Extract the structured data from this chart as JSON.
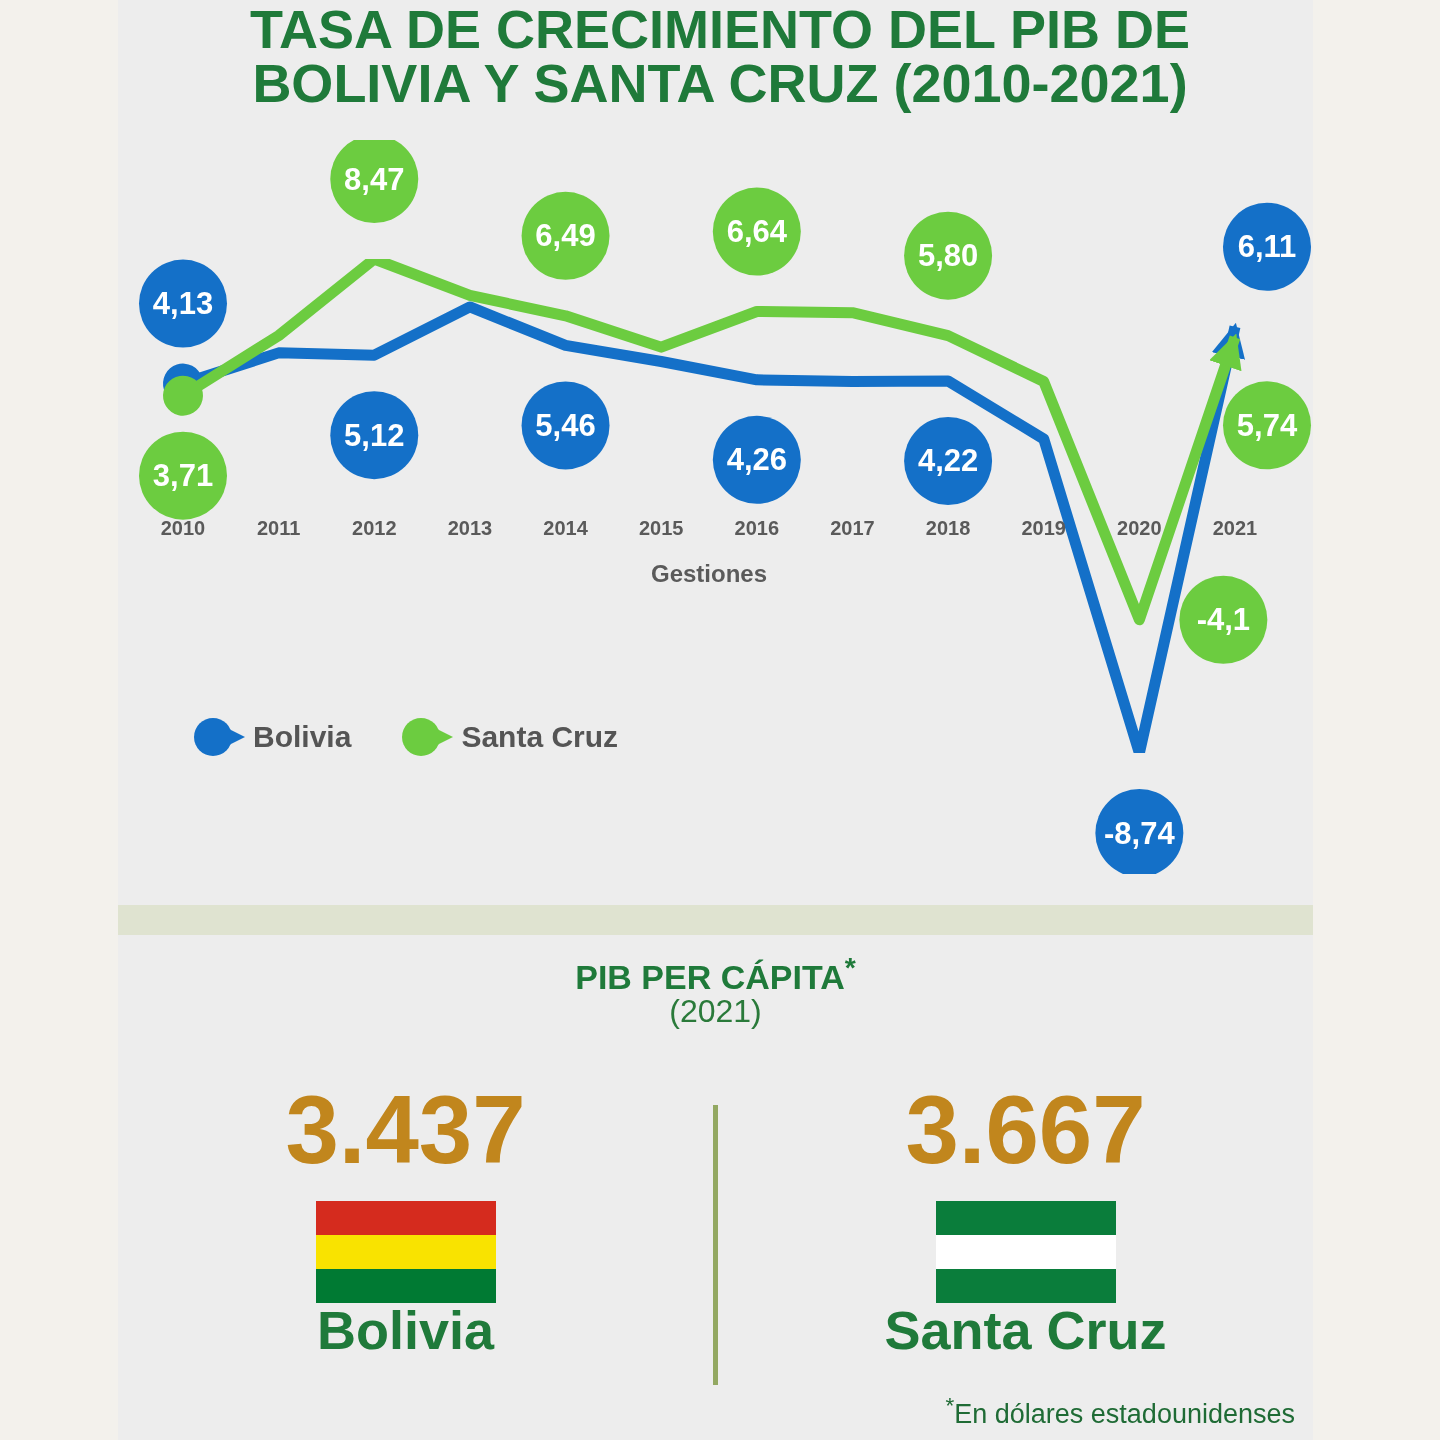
{
  "chart_data": [
    {
      "type": "line",
      "title": "TASA DE CRECIMIENTO DEL PIB DE BOLIVIA Y SANTA CRUZ (2010-2021)",
      "xlabel": "Gestiones",
      "categories": [
        "2010",
        "2011",
        "2012",
        "2013",
        "2014",
        "2015",
        "2016",
        "2017",
        "2018",
        "2019",
        "2020",
        "2021"
      ],
      "series": [
        {
          "name": "Bolivia",
          "color": "#1470c8",
          "values": [
            4.13,
            5.2,
            5.12,
            6.8,
            5.46,
            4.9,
            4.26,
            4.2,
            4.22,
            2.2,
            -8.74,
            6.11
          ],
          "value_labels": [
            "4,13",
            null,
            "5,12",
            null,
            "5,46",
            null,
            "4,26",
            null,
            "4,22",
            null,
            "-8,74",
            "6,11"
          ]
        },
        {
          "name": "Santa Cruz",
          "color": "#6ccc40",
          "values": [
            3.71,
            5.8,
            8.47,
            7.2,
            6.49,
            5.4,
            6.64,
            6.6,
            5.8,
            4.2,
            -4.1,
            5.74
          ],
          "value_labels": [
            "3,71",
            null,
            "8,47",
            null,
            "6,49",
            null,
            "6,64",
            null,
            "5,80",
            null,
            "-4,1",
            "5,74"
          ]
        }
      ],
      "legend": "bottom left"
    },
    {
      "type": "other",
      "title": "PIB PER CÁPITA$^{*}$",
      "subtitle": "(2021)",
      "categories": [
        "Bolivia",
        "Santa Cruz"
      ],
      "value_labels": [
        "3.437",
        "3.667"
      ],
      "annotations": [
        "$^{*}$En dólares estadounidenses"
      ]
    }
  ]
}
